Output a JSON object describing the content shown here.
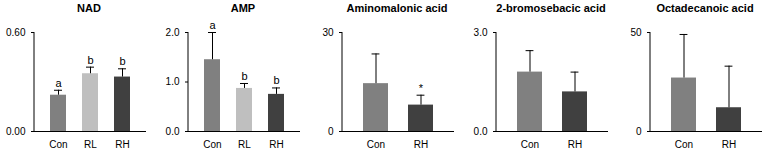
{
  "chart_data": [
    {
      "type": "bar",
      "title": "NAD",
      "categories": [
        "Con",
        "RL",
        "RH"
      ],
      "values": [
        0.22,
        0.35,
        0.33
      ],
      "errors": [
        0.03,
        0.04,
        0.05
      ],
      "colors": [
        "#808080",
        "#bfbfbf",
        "#404040"
      ],
      "annotations": [
        "a",
        "b",
        "b"
      ],
      "ylim": [
        0,
        0.6
      ],
      "yticks": [
        0,
        0.6
      ]
    },
    {
      "type": "bar",
      "title": "AMP",
      "categories": [
        "Con",
        "RL",
        "RH"
      ],
      "values": [
        1.45,
        0.87,
        0.75
      ],
      "errors": [
        0.55,
        0.1,
        0.13
      ],
      "colors": [
        "#808080",
        "#bfbfbf",
        "#404040"
      ],
      "annotations": [
        "a",
        "b",
        "b"
      ],
      "ylim": [
        0,
        2
      ],
      "yticks": [
        0,
        1,
        2
      ]
    },
    {
      "type": "bar",
      "title": "Aminomalonic acid",
      "categories": [
        "Con",
        "RH"
      ],
      "values": [
        14.5,
        8
      ],
      "errors": [
        9,
        3
      ],
      "colors": [
        "#808080",
        "#404040"
      ],
      "annotations": [
        null,
        "*"
      ],
      "ylim": [
        0,
        30
      ],
      "yticks": [
        0,
        30
      ]
    },
    {
      "type": "bar",
      "title": "2-bromosebacic acid",
      "categories": [
        "Con",
        "RH"
      ],
      "values": [
        1.8,
        1.2
      ],
      "errors": [
        0.65,
        0.6
      ],
      "colors": [
        "#808080",
        "#404040"
      ],
      "ylim": [
        0,
        3
      ],
      "yticks": [
        0,
        3
      ]
    },
    {
      "type": "bar",
      "title": "Octadecanoic acid",
      "categories": [
        "Con",
        "RH"
      ],
      "values": [
        27,
        12
      ],
      "errors": [
        22,
        21
      ],
      "colors": [
        "#808080",
        "#404040"
      ],
      "ylim": [
        0,
        50
      ],
      "yticks": [
        0,
        50
      ]
    }
  ]
}
